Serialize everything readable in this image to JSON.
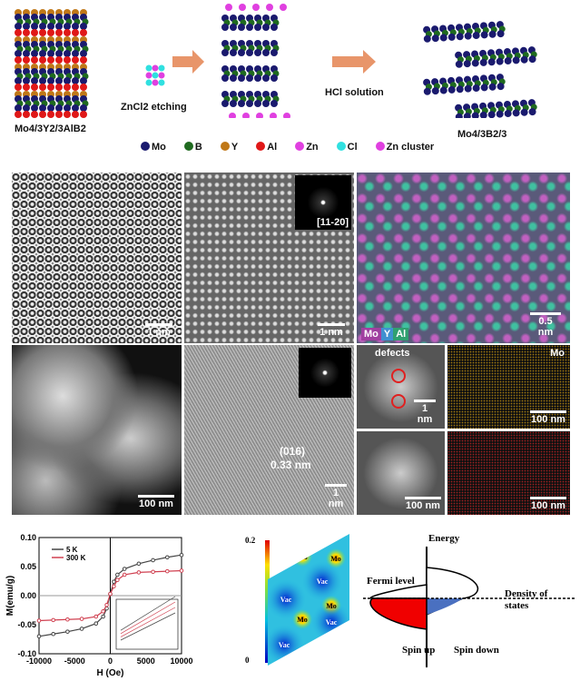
{
  "schematic": {
    "precursor": "Mo4/3Y2/3AlB2",
    "step1": "ZnCl2 etching",
    "step2": "HCl solution",
    "product": "Mo4/3B2/3",
    "legend": [
      {
        "label": "Mo",
        "color": "#1a1a6e"
      },
      {
        "label": "B",
        "color": "#1f6a1f"
      },
      {
        "label": "Y",
        "color": "#c07818"
      },
      {
        "label": "Al",
        "color": "#e01818"
      },
      {
        "label": "Zn",
        "color": "#e040e0"
      },
      {
        "label": "Cl",
        "color": "#30e0e0"
      },
      {
        "label": "Zn cluster",
        "color": "#e040e0"
      }
    ]
  },
  "panels": {
    "p1_scale": "1 nm",
    "p2_scale": "1 nm",
    "p2_fft": "[11-20]",
    "p3_scale": "0.5 nm",
    "p3_elements": [
      "Mo",
      "Y",
      "Al"
    ],
    "p4_scale": "100 nm",
    "p5_scale": "1 nm",
    "p5_plane": "(016)",
    "p5_spacing": "0.33 nm",
    "p6_label": "defects",
    "p6_scale": "1 nm",
    "p7_label": "Mo",
    "p7_scale": "100 nm",
    "p8_scale": "100 nm",
    "p9_scale": "100 nm"
  },
  "chart_data": {
    "type": "line",
    "xlabel": "H (Oe)",
    "ylabel": "M(emu/g)",
    "xlim": [
      -10000,
      10000
    ],
    "ylim": [
      -0.1,
      0.1
    ],
    "xticks": [
      "-10000",
      "-5000",
      "0",
      "5000",
      "10000"
    ],
    "yticks": [
      "0.10",
      "0.05",
      "0.00",
      "-0.05",
      "-0.10"
    ],
    "legend_position": "top-left",
    "x": [
      -10000,
      -8000,
      -6000,
      -4000,
      -2000,
      -1000,
      -500,
      0,
      500,
      1000,
      2000,
      4000,
      6000,
      8000,
      10000
    ],
    "series": [
      {
        "name": "5 K",
        "color": "#444444",
        "values": [
          -0.07,
          -0.066,
          -0.062,
          -0.057,
          -0.048,
          -0.036,
          -0.022,
          0.003,
          0.024,
          0.036,
          0.046,
          0.055,
          0.061,
          0.066,
          0.07
        ]
      },
      {
        "name": "300 K",
        "color": "#d04050",
        "values": [
          -0.043,
          -0.042,
          -0.041,
          -0.04,
          -0.036,
          -0.027,
          -0.016,
          0.003,
          0.016,
          0.027,
          0.036,
          0.04,
          0.041,
          0.042,
          0.043
        ]
      }
    ]
  },
  "charge_map": {
    "max": "0.2",
    "min": "0",
    "labels": [
      "Mo",
      "Mo",
      "Vac",
      "Vac",
      "Mo",
      "Mo",
      "Vac",
      "Vac"
    ]
  },
  "dos": {
    "energy": "Energy",
    "fermi": "Fermi level",
    "dos": "Density of",
    "dos2": "states",
    "up": "Spin up",
    "down": "Spin down"
  }
}
